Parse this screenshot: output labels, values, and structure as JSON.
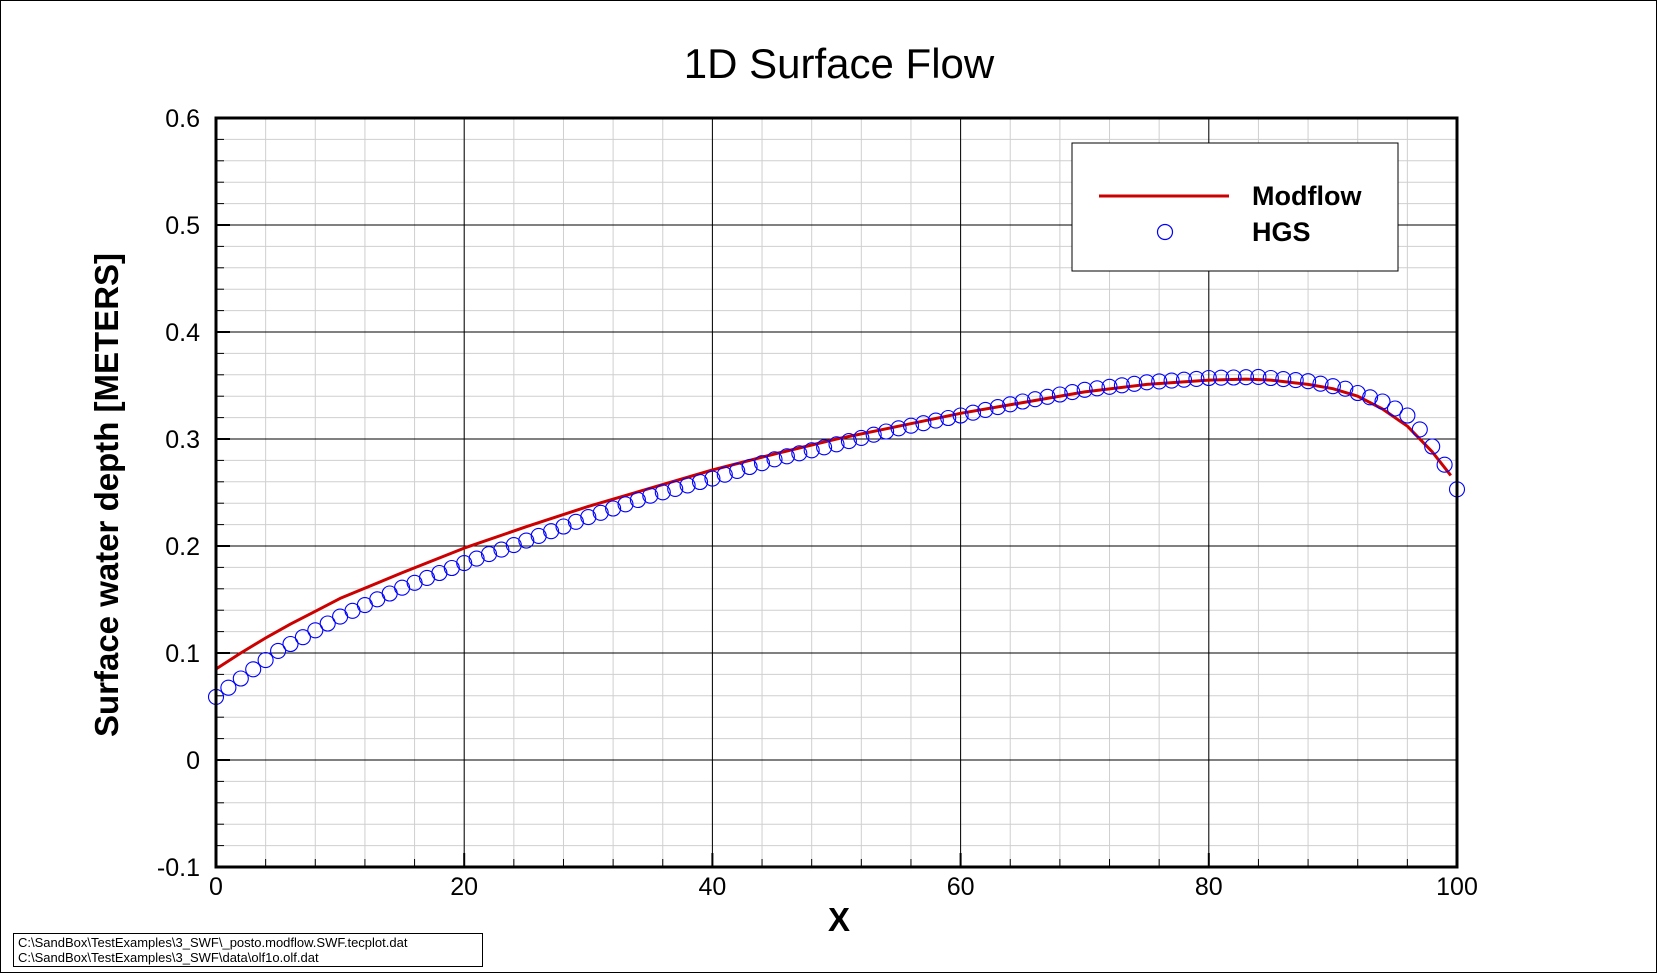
{
  "chart_data": {
    "type": "line",
    "title": "1D Surface Flow",
    "xlabel": "X",
    "ylabel": "Surface water depth [METERS]",
    "xlim": [
      0,
      100
    ],
    "ylim": [
      -0.1,
      0.6
    ],
    "xticks": [
      0,
      20,
      40,
      60,
      80,
      100
    ],
    "yticks": [
      -0.1,
      0,
      0.1,
      0.2,
      0.3,
      0.4,
      0.5,
      0.6
    ],
    "ytick_labels": [
      "-0.1",
      "0",
      "0.1",
      "0.2",
      "0.3",
      "0.4",
      "0.5",
      "0.6"
    ],
    "grid": true,
    "legend_position": "top-right",
    "series": [
      {
        "name": "Modflow",
        "style": "line",
        "color": "#cc0000",
        "x": [
          0,
          2,
          4,
          6,
          8,
          10,
          15,
          20,
          25,
          30,
          35,
          40,
          45,
          50,
          55,
          60,
          65,
          70,
          75,
          80,
          83,
          85,
          88,
          90,
          92,
          94,
          96,
          98,
          99.5
        ],
        "y": [
          0.085,
          0.1,
          0.114,
          0.127,
          0.139,
          0.151,
          0.175,
          0.198,
          0.218,
          0.237,
          0.254,
          0.271,
          0.286,
          0.3,
          0.312,
          0.324,
          0.334,
          0.344,
          0.351,
          0.355,
          0.356,
          0.355,
          0.351,
          0.347,
          0.34,
          0.328,
          0.312,
          0.288,
          0.266
        ]
      },
      {
        "name": "HGS",
        "style": "markers",
        "marker": "circle",
        "color": "#0000ff",
        "x": [
          0,
          5,
          10,
          15,
          20,
          25,
          30,
          35,
          40,
          45,
          50,
          55,
          60,
          65,
          70,
          75,
          80,
          84,
          88,
          91,
          94,
          96,
          97,
          98,
          99,
          100
        ],
        "y": [
          0.059,
          0.102,
          0.134,
          0.161,
          0.184,
          0.205,
          0.227,
          0.247,
          0.263,
          0.281,
          0.295,
          0.31,
          0.322,
          0.335,
          0.346,
          0.353,
          0.357,
          0.358,
          0.354,
          0.347,
          0.335,
          0.322,
          0.309,
          0.293,
          0.276,
          0.253
        ]
      }
    ]
  },
  "file_labels": [
    "C:\\SandBox\\TestExamples\\3_SWF\\_posto.modflow.SWF.tecplot.dat",
    "C:\\SandBox\\TestExamples\\3_SWF\\data\\olf1o.olf.dat"
  ]
}
